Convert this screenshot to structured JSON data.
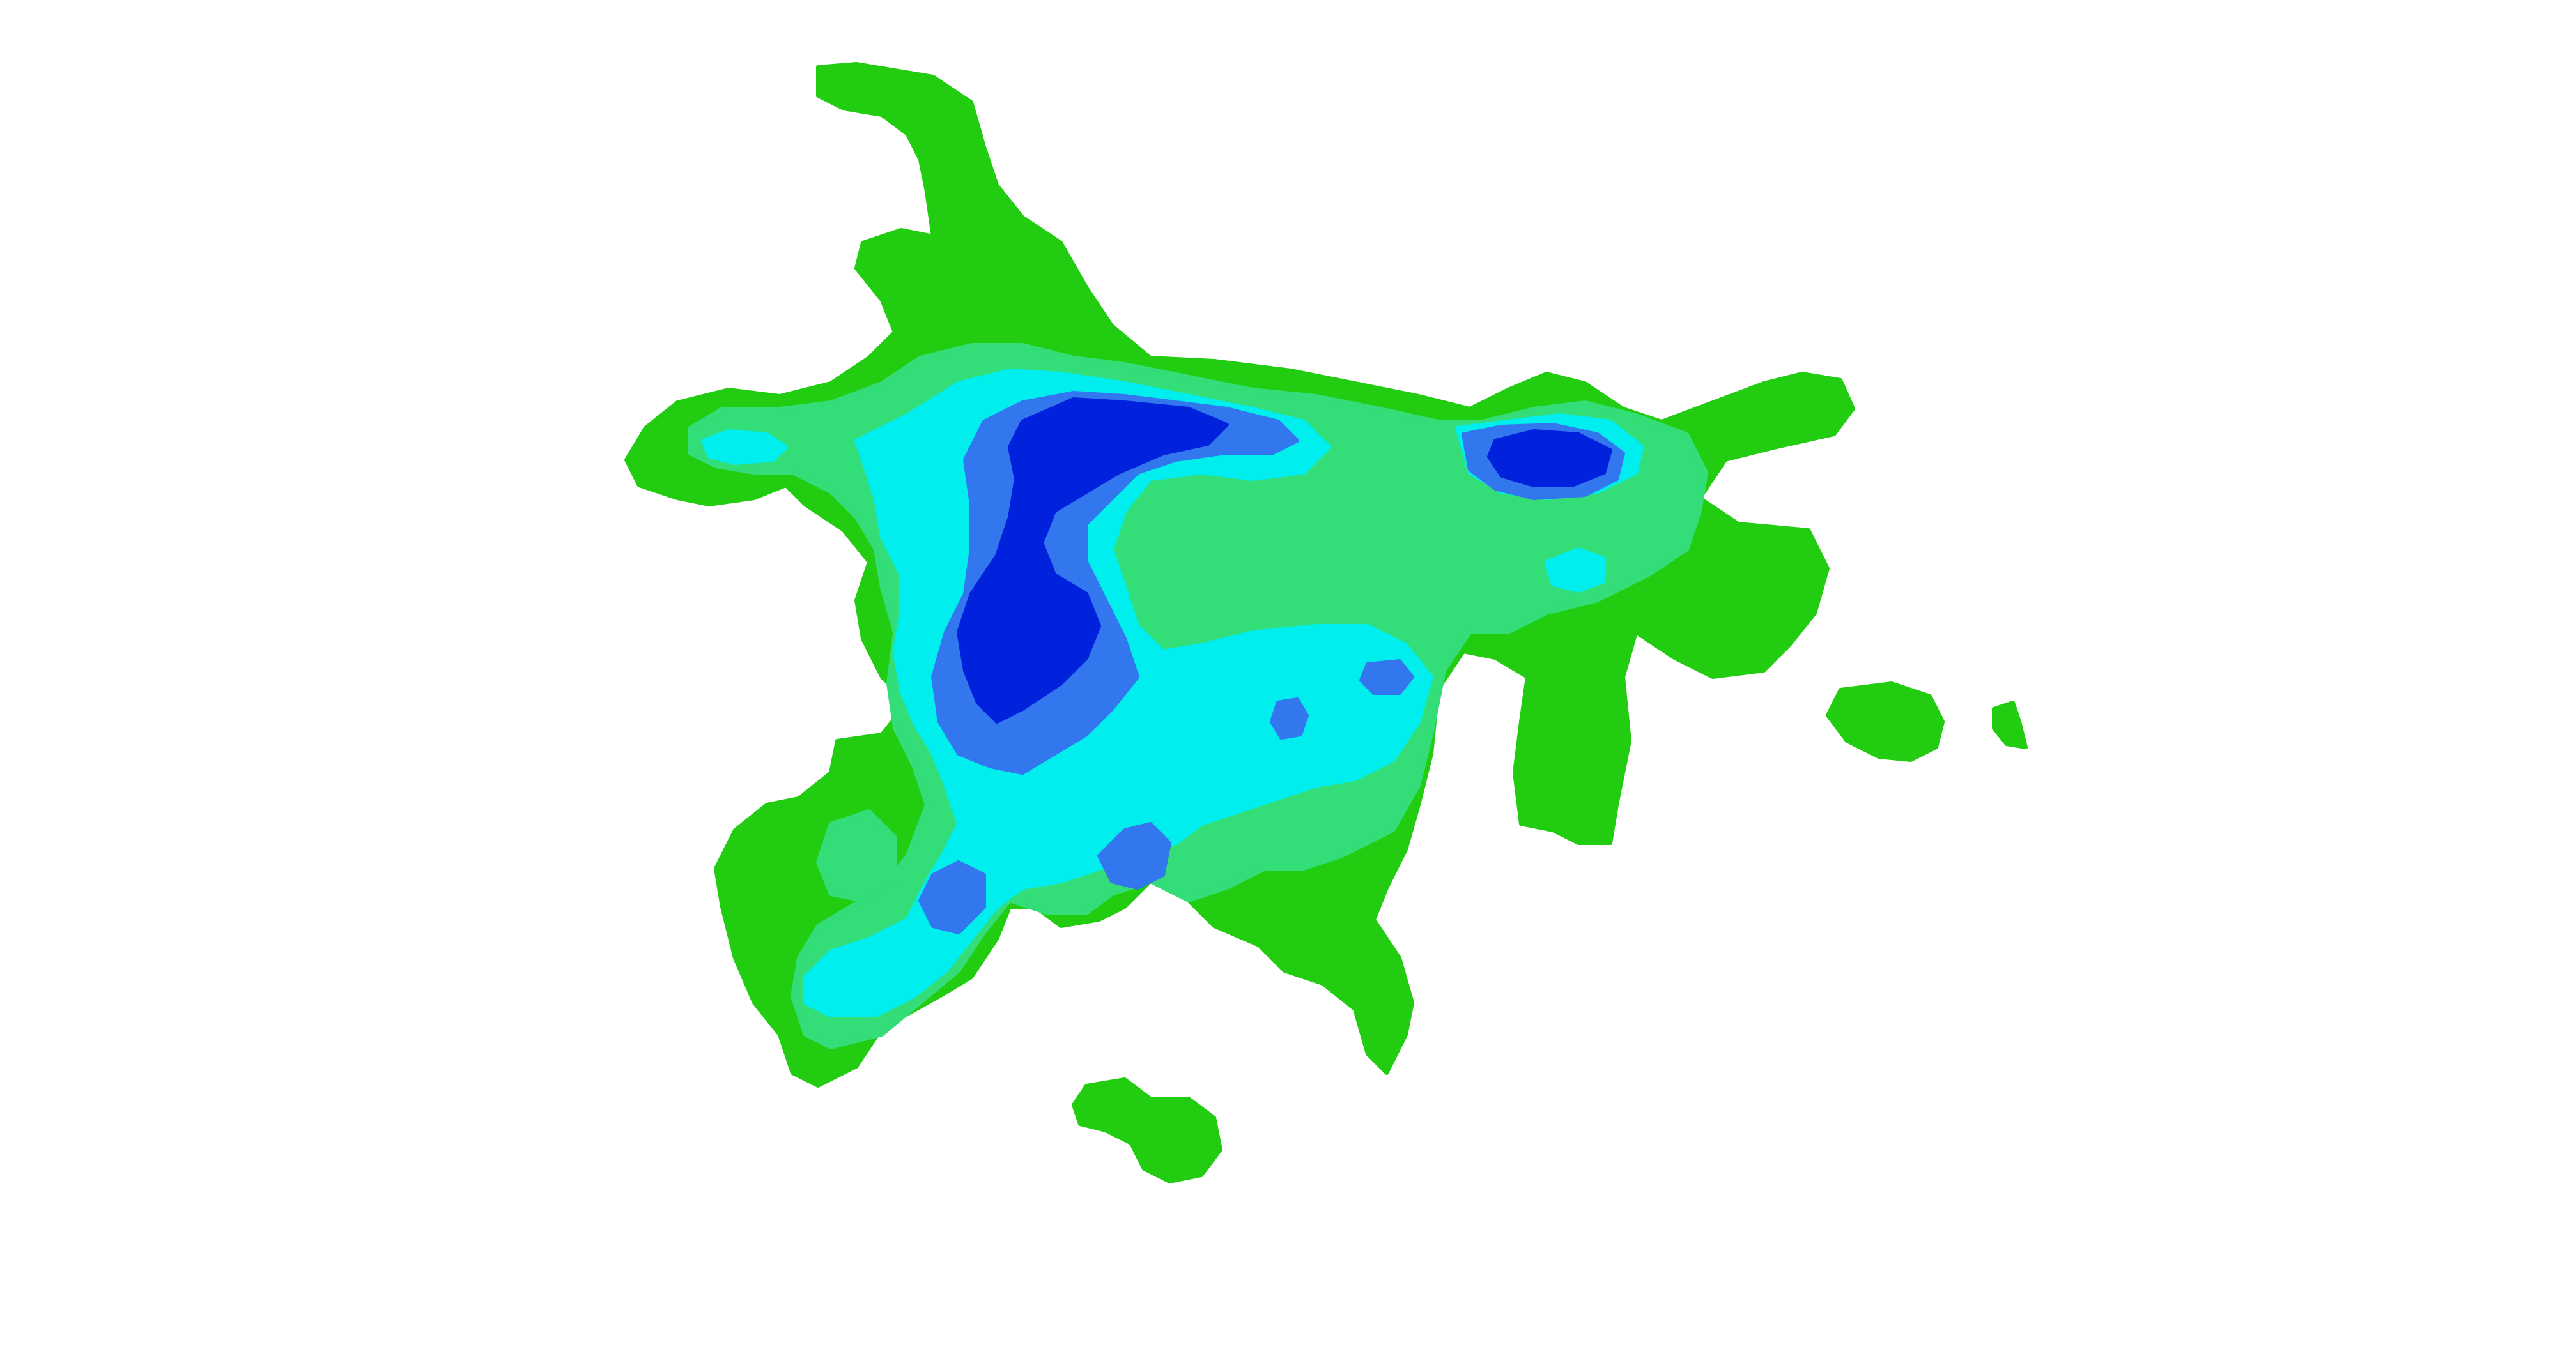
{
  "map": {
    "background_color": "#ffffff",
    "levels": [
      {
        "name": "level-1",
        "color": "#22cc11"
      },
      {
        "name": "level-2",
        "color": "#33dd77"
      },
      {
        "name": "level-3",
        "color": "#00eeee"
      },
      {
        "name": "level-4",
        "color": "#3377ee"
      },
      {
        "name": "level-5",
        "color": "#0022dd"
      }
    ]
  }
}
